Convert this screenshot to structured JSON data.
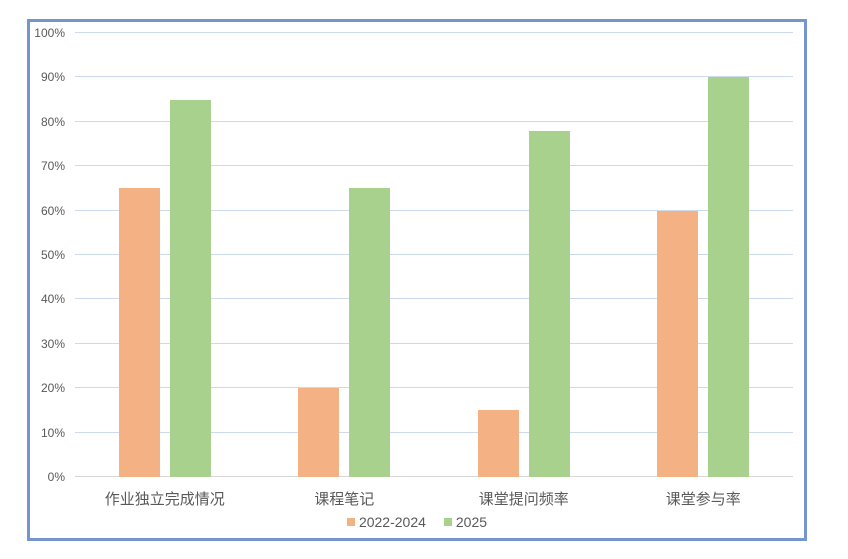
{
  "chart_data": {
    "type": "bar",
    "categories": [
      "作业独立完成情况",
      "课程笔记",
      "课堂提问频率",
      "课堂参与率"
    ],
    "series": [
      {
        "name": "2022-2024",
        "color": "#F4B183",
        "values": [
          65,
          20,
          15,
          60
        ]
      },
      {
        "name": "2025",
        "color": "#A9D18E",
        "values": [
          85,
          65,
          78,
          90
        ]
      }
    ],
    "xlabel": "",
    "ylabel": "",
    "ylim": [
      0,
      100
    ],
    "y_tick_step": 10,
    "y_tick_labels": [
      "0%",
      "10%",
      "20%",
      "30%",
      "40%",
      "50%",
      "60%",
      "70%",
      "80%",
      "90%",
      "100%"
    ],
    "grid": true,
    "legend_position": "bottom"
  },
  "colors": {
    "frame_border": "#7495CE",
    "gridline": "#CDD9EC",
    "axis_line": "#D6D6D6",
    "text": "#595959",
    "background": "#FFFFFF",
    "series_2022_2024": "#F4B183",
    "series_2025": "#A9D18E"
  }
}
